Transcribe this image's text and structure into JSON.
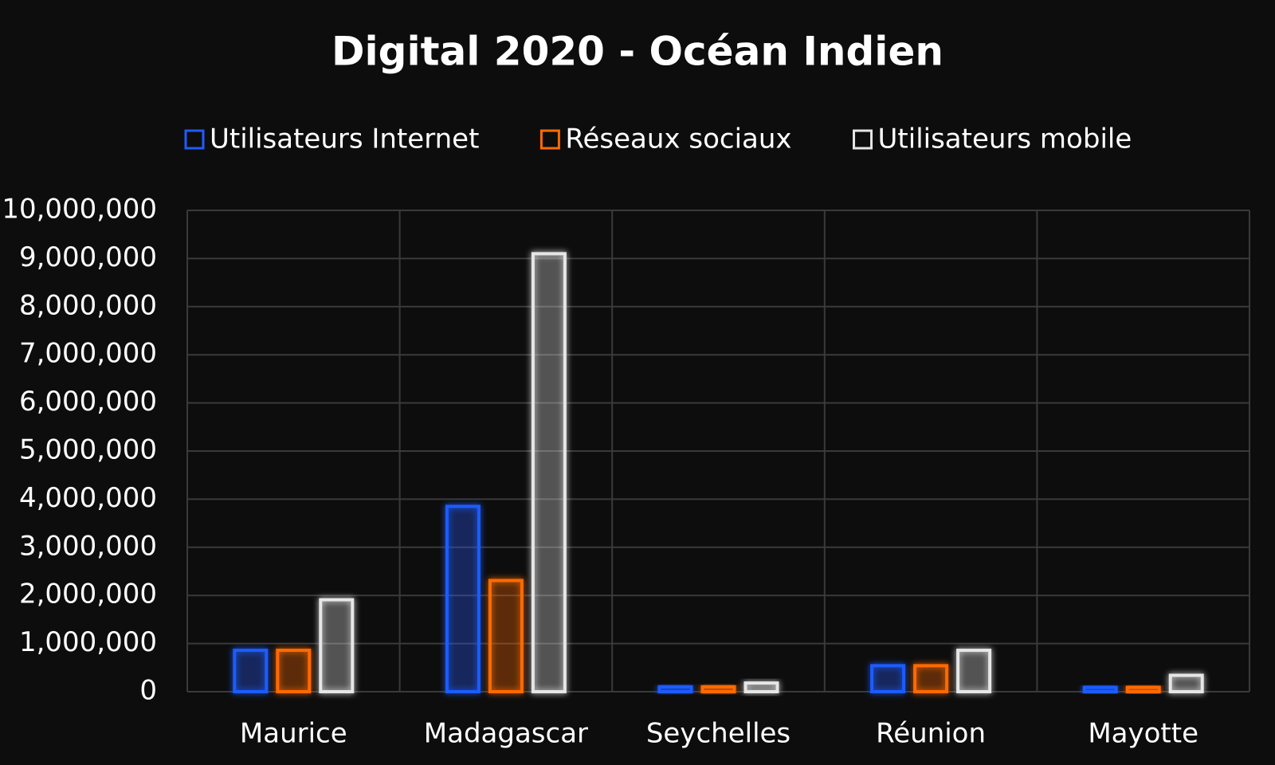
{
  "chart_data": {
    "type": "bar",
    "title": "Digital 2020 - Océan Indien",
    "categories": [
      "Maurice",
      "Madagascar",
      "Seychelles",
      "Réunion",
      "Mayotte"
    ],
    "series": [
      {
        "name": "Utilisateurs Internet",
        "color": "#1f5cff",
        "values": [
          860000,
          3850000,
          100000,
          540000,
          90000
        ]
      },
      {
        "name": "Réseaux sociaux",
        "color": "#ff6a00",
        "values": [
          860000,
          2310000,
          100000,
          540000,
          90000
        ]
      },
      {
        "name": "Utilisateurs mobile",
        "color": "#e6e6e6",
        "values": [
          1910000,
          9100000,
          180000,
          860000,
          340000
        ]
      }
    ],
    "ylim": [
      0,
      10000000
    ],
    "yticks": [
      0,
      {
        "value": 1000000,
        "label": "1,000,000"
      },
      {
        "value": 2000000,
        "label": "2,000,000"
      },
      {
        "value": 3000000,
        "label": "3,000,000"
      },
      {
        "value": 4000000,
        "label": "4,000,000"
      },
      {
        "value": 5000000,
        "label": "5,000,000"
      },
      {
        "value": 6000000,
        "label": "6,000,000"
      },
      {
        "value": 7000000,
        "label": "7,000,000"
      },
      {
        "value": 8000000,
        "label": "8,000,000"
      },
      {
        "value": 9000000,
        "label": "9,000,000"
      },
      {
        "value": 10000000,
        "label": "10,000,000"
      }
    ],
    "grid": true,
    "legend": "top"
  }
}
